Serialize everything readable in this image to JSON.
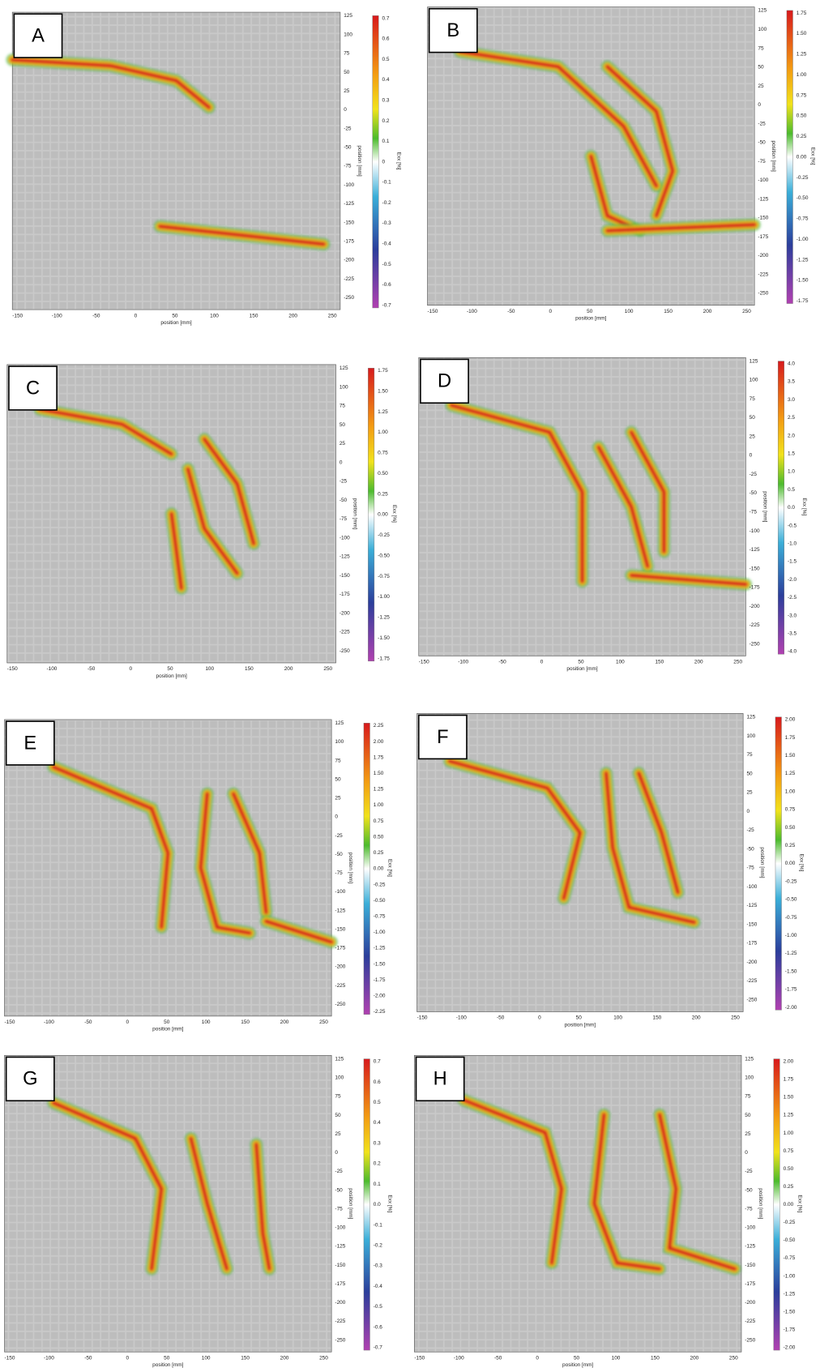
{
  "panels": [
    {
      "label": "A",
      "x_axis_label": "position [mm]",
      "y_axis_label": "position [mm]",
      "colorbar_label": "Exx [%]",
      "x_ticks": [
        "-150",
        "-100",
        "-50",
        "0",
        "50",
        "100",
        "150",
        "200",
        "250"
      ],
      "y_ticks": [
        "125",
        "100",
        "75",
        "50",
        "25",
        "0",
        "-25",
        "-50",
        "-75",
        "-100",
        "-125",
        "-150",
        "-175",
        "-200",
        "-225",
        "-250"
      ],
      "colorbar_ticks": [
        "0.7",
        "0.6",
        "0.5",
        "0.4",
        "0.3",
        "0.2",
        "0.1",
        "0",
        "-0.1",
        "-0.2",
        "-0.3",
        "-0.4",
        "-0.5",
        "-0.6",
        "-0.7"
      ]
    },
    {
      "label": "B",
      "x_axis_label": "position [mm]",
      "y_axis_label": "position [mm]",
      "colorbar_label": "Exx [%]",
      "x_ticks": [
        "-150",
        "-100",
        "-50",
        "0",
        "50",
        "100",
        "150",
        "200",
        "250"
      ],
      "y_ticks": [
        "125",
        "100",
        "75",
        "50",
        "25",
        "0",
        "-25",
        "-50",
        "-75",
        "-100",
        "-125",
        "-150",
        "-175",
        "-200",
        "-225",
        "-250"
      ],
      "colorbar_ticks": [
        "1.75",
        "1.50",
        "1.25",
        "1.00",
        "0.75",
        "0.50",
        "0.25",
        "0.00",
        "-0.25",
        "-0.50",
        "-0.75",
        "-1.00",
        "-1.25",
        "-1.50",
        "-1.75"
      ]
    },
    {
      "label": "C",
      "x_axis_label": "position [mm]",
      "y_axis_label": "position [mm]",
      "colorbar_label": "Exx [%]",
      "x_ticks": [
        "-150",
        "-100",
        "-50",
        "0",
        "50",
        "100",
        "150",
        "200",
        "250"
      ],
      "y_ticks": [
        "125",
        "100",
        "75",
        "50",
        "25",
        "0",
        "-25",
        "-50",
        "-75",
        "-100",
        "-125",
        "-150",
        "-175",
        "-200",
        "-225",
        "-250"
      ],
      "colorbar_ticks": [
        "1.75",
        "1.50",
        "1.25",
        "1.00",
        "0.75",
        "0.50",
        "0.25",
        "0.00",
        "-0.25",
        "-0.50",
        "-0.75",
        "-1.00",
        "-1.25",
        "-1.50",
        "-1.75"
      ]
    },
    {
      "label": "D",
      "x_axis_label": "position [mm]",
      "y_axis_label": "position [mm]",
      "colorbar_label": "Exx [%]",
      "x_ticks": [
        "-150",
        "-100",
        "-50",
        "0",
        "50",
        "100",
        "150",
        "200",
        "250"
      ],
      "y_ticks": [
        "125",
        "100",
        "75",
        "50",
        "25",
        "0",
        "-25",
        "-50",
        "-75",
        "-100",
        "-125",
        "-150",
        "-175",
        "-200",
        "-225",
        "-250"
      ],
      "colorbar_ticks": [
        "4.0",
        "3.5",
        "3.0",
        "2.5",
        "2.0",
        "1.5",
        "1.0",
        "0.5",
        "0.0",
        "-0.5",
        "-1.0",
        "-1.5",
        "-2.0",
        "-2.5",
        "-3.0",
        "-3.5",
        "-4.0"
      ]
    },
    {
      "label": "E",
      "x_axis_label": "position [mm]",
      "y_axis_label": "position [mm]",
      "colorbar_label": "Exx [%]",
      "x_ticks": [
        "-150",
        "-100",
        "-50",
        "0",
        "50",
        "100",
        "150",
        "200",
        "250"
      ],
      "y_ticks": [
        "125",
        "100",
        "75",
        "50",
        "25",
        "0",
        "-25",
        "-50",
        "-75",
        "-100",
        "-125",
        "-150",
        "-175",
        "-200",
        "-225",
        "-250"
      ],
      "colorbar_ticks": [
        "2.25",
        "2.00",
        "1.75",
        "1.50",
        "1.25",
        "1.00",
        "0.75",
        "0.50",
        "0.25",
        "0.00",
        "-0.25",
        "-0.50",
        "-0.75",
        "-1.00",
        "-1.25",
        "-1.50",
        "-1.75",
        "-2.00",
        "-2.25"
      ]
    },
    {
      "label": "F",
      "x_axis_label": "position [mm]",
      "y_axis_label": "position [mm]",
      "colorbar_label": "Exx [%]",
      "x_ticks": [
        "-150",
        "-100",
        "-50",
        "0",
        "50",
        "100",
        "150",
        "200",
        "250"
      ],
      "y_ticks": [
        "125",
        "100",
        "75",
        "50",
        "25",
        "0",
        "-25",
        "-50",
        "-75",
        "-100",
        "-125",
        "-150",
        "-175",
        "-200",
        "-225",
        "-250"
      ],
      "colorbar_ticks": [
        "2.00",
        "1.75",
        "1.50",
        "1.25",
        "1.00",
        "0.75",
        "0.50",
        "0.25",
        "0.00",
        "-0.25",
        "-0.50",
        "-0.75",
        "-1.00",
        "-1.25",
        "-1.50",
        "-1.75",
        "-2.00"
      ]
    },
    {
      "label": "G",
      "x_axis_label": "position [mm]",
      "y_axis_label": "position [mm]",
      "colorbar_label": "Exx [%]",
      "x_ticks": [
        "-150",
        "-100",
        "-50",
        "0",
        "50",
        "100",
        "150",
        "200",
        "250"
      ],
      "y_ticks": [
        "125",
        "100",
        "75",
        "50",
        "25",
        "0",
        "-25",
        "-50",
        "-75",
        "-100",
        "-125",
        "-150",
        "-175",
        "-200",
        "-225",
        "-250"
      ],
      "colorbar_ticks": [
        "0.7",
        "0.6",
        "0.5",
        "0.4",
        "0.3",
        "0.2",
        "0.1",
        "0.0",
        "-0.1",
        "-0.2",
        "-0.3",
        "-0.4",
        "-0.5",
        "-0.6",
        "-0.7"
      ]
    },
    {
      "label": "H",
      "x_axis_label": "position [mm]",
      "y_axis_label": "position [mm]",
      "colorbar_label": "Exx [%]",
      "x_ticks": [
        "-150",
        "-100",
        "-50",
        "0",
        "50",
        "100",
        "150",
        "200",
        "250"
      ],
      "y_ticks": [
        "125",
        "100",
        "75",
        "50",
        "25",
        "0",
        "-25",
        "-50",
        "-75",
        "-100",
        "-125",
        "-150",
        "-175",
        "-200",
        "-225",
        "-250"
      ],
      "colorbar_ticks": [
        "2.00",
        "1.75",
        "1.50",
        "1.25",
        "1.00",
        "0.75",
        "0.50",
        "0.25",
        "0.00",
        "-0.25",
        "-0.50",
        "-0.75",
        "-1.00",
        "-1.25",
        "-1.50",
        "-1.75",
        "-2.00"
      ]
    }
  ]
}
